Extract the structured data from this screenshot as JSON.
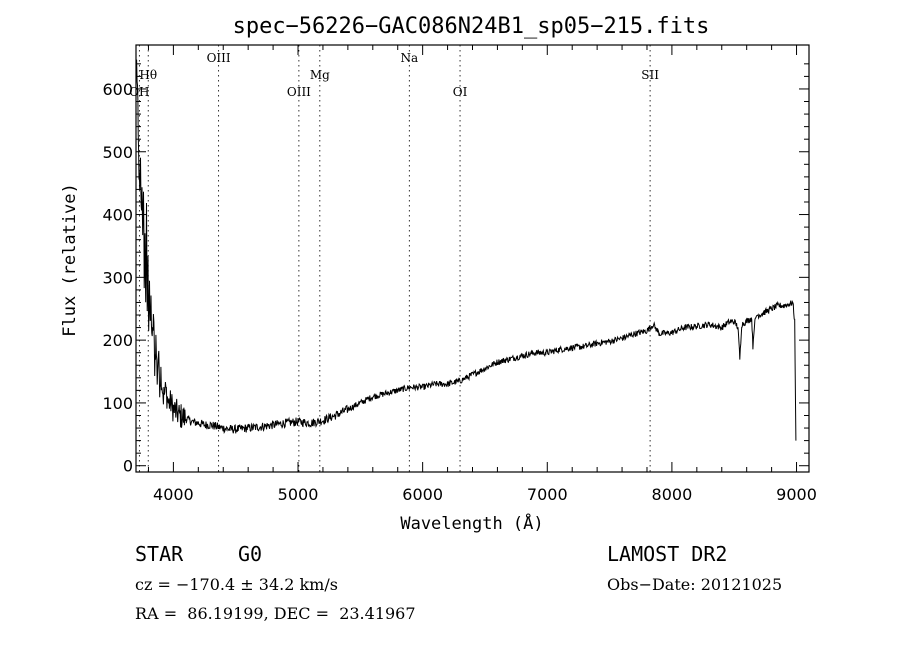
{
  "chart_data": {
    "type": "line",
    "title": "spec−56226−GAC086N24B1_sp05−215.fits",
    "xlabel": "Wavelength (Å)",
    "ylabel": "Flux (relative)",
    "xlim": [
      3700,
      9100
    ],
    "ylim": [
      -10,
      670
    ],
    "xticks": [
      4000,
      5000,
      6000,
      7000,
      8000,
      9000
    ],
    "yticks": [
      0,
      100,
      200,
      300,
      400,
      500,
      600
    ],
    "grid": false,
    "lines": [
      {
        "label": "Hθ",
        "x": 3798,
        "row": 1
      },
      {
        "label": "OH",
        "x": 3727,
        "row": 2
      },
      {
        "label": "OIII",
        "x": 4363,
        "row": 0
      },
      {
        "label": "OIII",
        "x": 5007,
        "row": 2
      },
      {
        "label": "Mg",
        "x": 5175,
        "row": 1
      },
      {
        "label": "Na",
        "x": 5893,
        "row": 0
      },
      {
        "label": "OI",
        "x": 6300,
        "row": 2
      },
      {
        "label": "SII",
        "x": 7825,
        "row": 1
      }
    ],
    "series": [
      {
        "x": [
          3705,
          3712,
          3718,
          3724,
          3730,
          3736,
          3742,
          3748,
          3754,
          3760,
          3766,
          3772,
          3778,
          3784,
          3790,
          3796,
          3802,
          3808,
          3814,
          3820,
          3830,
          3840,
          3850,
          3860,
          3870,
          3880,
          3890,
          3900,
          3920,
          3940,
          3960,
          3980,
          4000,
          4050,
          4100,
          4150,
          4200,
          4250,
          4300,
          4350,
          4400,
          4450,
          4500,
          4600,
          4700,
          4800,
          4900,
          5000,
          5100,
          5200,
          5300,
          5400,
          5500,
          5600,
          5700,
          5800,
          5900,
          6000,
          6100,
          6200,
          6300,
          6400,
          6500,
          6600,
          6700,
          6800,
          6900,
          7000,
          7100,
          7200,
          7300,
          7400,
          7500,
          7600,
          7700,
          7800,
          7850,
          7900,
          8000,
          8100,
          8200,
          8300,
          8400,
          8450,
          8500,
          8530,
          8545,
          8560,
          8600,
          8640,
          8650,
          8662,
          8680,
          8700,
          8750,
          8800,
          8850,
          8900,
          8950,
          8970,
          8985,
          8995
        ],
        "y": [
          640,
          600,
          520,
          470,
          430,
          480,
          400,
          440,
          380,
          420,
          300,
          360,
          270,
          400,
          250,
          320,
          230,
          300,
          210,
          260,
          190,
          240,
          160,
          200,
          140,
          180,
          130,
          150,
          110,
          120,
          100,
          100,
          90,
          80,
          75,
          70,
          68,
          65,
          65,
          62,
          60,
          58,
          58,
          60,
          62,
          65,
          68,
          70,
          68,
          72,
          80,
          90,
          100,
          110,
          115,
          120,
          125,
          125,
          130,
          130,
          135,
          145,
          155,
          165,
          170,
          175,
          180,
          180,
          185,
          188,
          190,
          195,
          198,
          203,
          210,
          215,
          225,
          210,
          212,
          220,
          222,
          225,
          220,
          228,
          230,
          220,
          170,
          225,
          230,
          235,
          190,
          225,
          240,
          240,
          245,
          250,
          255,
          255,
          258,
          260,
          230,
          40
        ]
      }
    ]
  },
  "info": {
    "class_label": "STAR",
    "subclass": "G0",
    "survey": "LAMOST DR2",
    "cz": "cz = −170.4 ± 34.2 km/s",
    "obs_date": "Obs−Date: 20121025",
    "coords": "RA =  86.19199, DEC =  23.41967"
  }
}
